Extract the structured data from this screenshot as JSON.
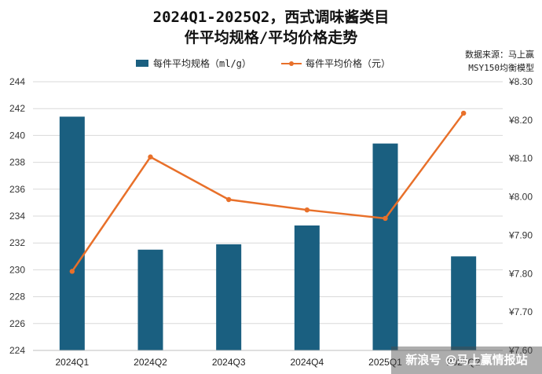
{
  "chart_data": {
    "type": "bar+line",
    "title_line1": "2024Q1-2025Q2，西式调味酱类目",
    "title_line2": "件平均规格/平均价格走势",
    "source_line1": "数据来源：马上赢",
    "source_line2": "MSY150均衡模型",
    "categories": [
      "2024Q1",
      "2024Q2",
      "2024Q3",
      "2024Q4",
      "2025Q1",
      "2025Q2"
    ],
    "series": [
      {
        "name": "每件平均规格（ml/g）",
        "type": "bar",
        "axis": "left",
        "color": "#1a5f80",
        "values": [
          241.4,
          231.5,
          231.9,
          233.3,
          239.4,
          231.0
        ]
      },
      {
        "name": "每件平均价格（元）",
        "type": "line",
        "axis": "right",
        "color": "#e8702a",
        "values": [
          7.806,
          8.104,
          7.993,
          7.966,
          7.944,
          8.218
        ]
      }
    ],
    "y_left": {
      "min": 224,
      "max": 244,
      "step": 2,
      "tick_labels": [
        "224",
        "226",
        "228",
        "230",
        "232",
        "234",
        "236",
        "238",
        "240",
        "242",
        "244"
      ]
    },
    "y_right": {
      "min": 7.6,
      "max": 8.3,
      "step": 0.1,
      "tick_labels": [
        "¥7.60",
        "¥7.70",
        "¥7.80",
        "¥7.90",
        "¥8.00",
        "¥8.10",
        "¥8.20",
        "¥8.30"
      ]
    },
    "grid": "horizontal",
    "legend_position": "top-center"
  },
  "watermark": "新浪号 @马上赢情报站"
}
